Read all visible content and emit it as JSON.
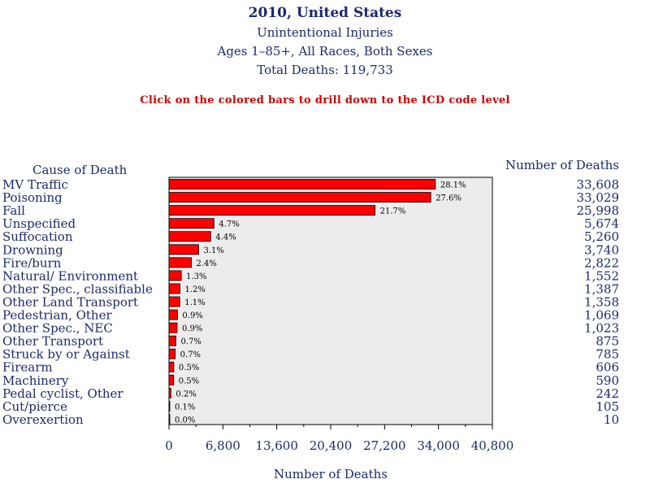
{
  "header": {
    "title": "2010, United States",
    "subtitle": "Unintentional Injuries",
    "population": "Ages 1–85+, All Races, Both Sexes",
    "total": "Total Deaths: 119,733",
    "instruction": "Click on the colored bars to drill down to the ICD code level"
  },
  "chart_data": {
    "type": "bar",
    "orientation": "horizontal",
    "title": "2010, United States",
    "category_header": "Cause of Death",
    "value_header": "Number of Deaths",
    "xlabel": "Number of Deaths",
    "xlim": [
      0,
      40800
    ],
    "xticks": [
      0,
      6800,
      13600,
      20400,
      27200,
      34000,
      40800
    ],
    "xtick_labels": [
      "0",
      "6,800",
      "13,600",
      "20,400",
      "27,200",
      "34,000",
      "40,800"
    ],
    "bar_color": "#ff0000",
    "plot_background": "#ececec",
    "categories": [
      "MV Traffic",
      "Poisoning",
      "Fall",
      "Unspecified",
      "Suffocation",
      "Drowning",
      "Fire/burn",
      "Natural/ Environment",
      "Other Spec., classifiable",
      "Other Land Transport",
      "Pedestrian, Other",
      "Other Spec., NEC",
      "Other Transport",
      "Struck by or Against",
      "Firearm",
      "Machinery",
      "Pedal cyclist, Other",
      "Cut/pierce",
      "Overexertion"
    ],
    "values": [
      33608,
      33029,
      25998,
      5674,
      5260,
      3740,
      2822,
      1552,
      1387,
      1358,
      1069,
      1023,
      875,
      785,
      606,
      590,
      242,
      105,
      10
    ],
    "value_labels": [
      "33,608",
      "33,029",
      "25,998",
      "5,674",
      "5,260",
      "3,740",
      "2,822",
      "1,552",
      "1,387",
      "1,358",
      "1,069",
      "1,023",
      "875",
      "785",
      "606",
      "590",
      "242",
      "105",
      "10"
    ],
    "percent_labels": [
      "28.1%",
      "27.6%",
      "21.7%",
      "4.7%",
      "4.4%",
      "3.1%",
      "2.4%",
      "1.3%",
      "1.2%",
      "1.1%",
      "0.9%",
      "0.9%",
      "0.7%",
      "0.7%",
      "0.5%",
      "0.5%",
      "0.2%",
      "0.1%",
      "0.0%"
    ]
  }
}
